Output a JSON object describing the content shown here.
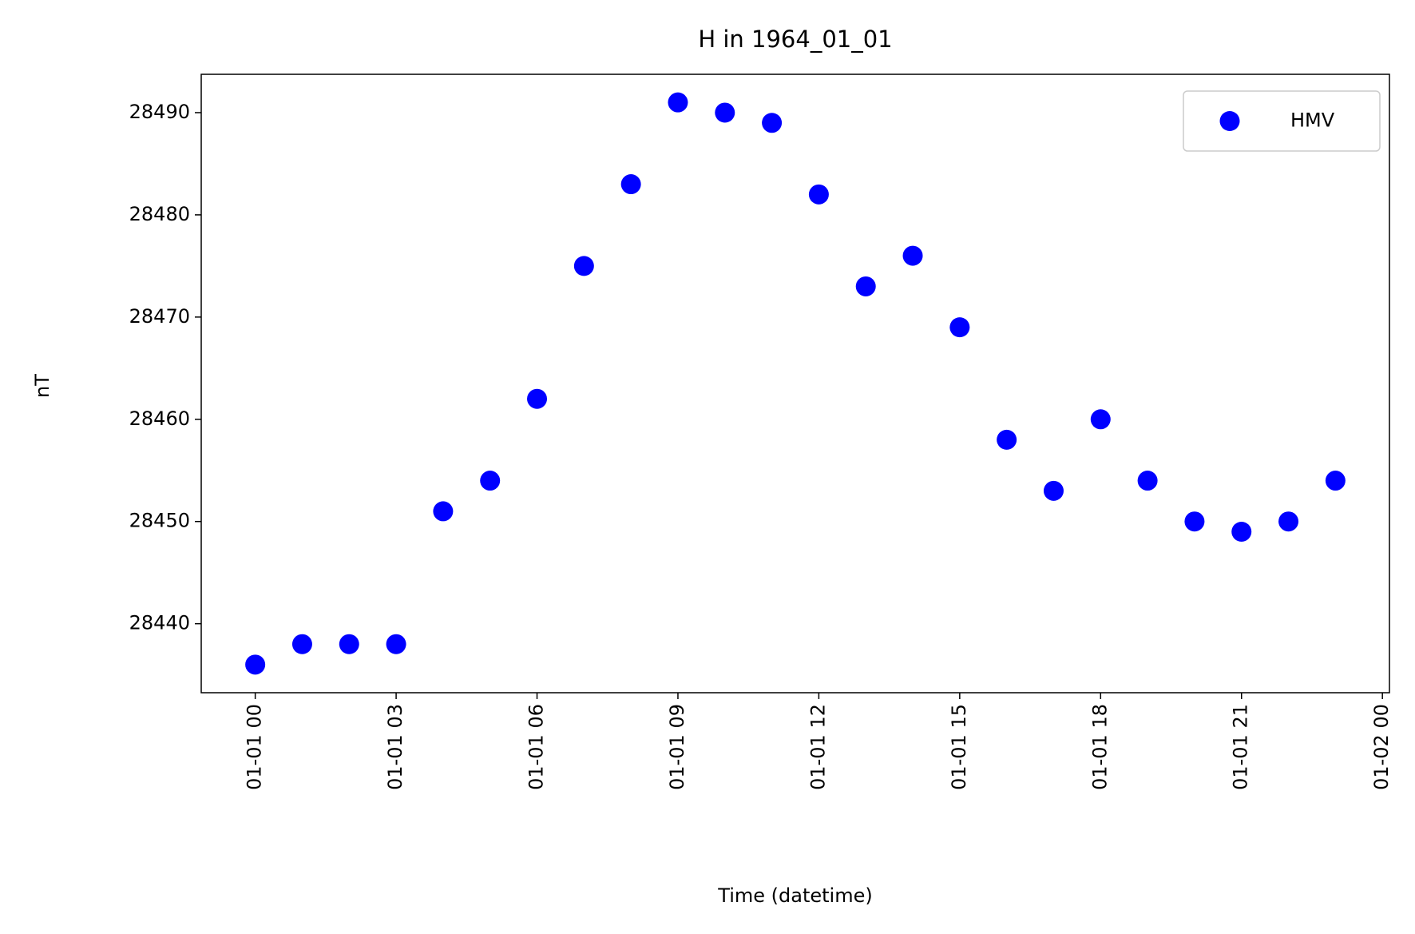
{
  "chart_data": {
    "type": "scatter",
    "title": "H in 1964_01_01",
    "xlabel": "Time (datetime)",
    "ylabel": "nT",
    "x": [
      0,
      1,
      2,
      3,
      4,
      5,
      6,
      7,
      8,
      9,
      10,
      11,
      12,
      13,
      14,
      15,
      16,
      17,
      18,
      19,
      20,
      21,
      22,
      23
    ],
    "series": [
      {
        "name": "HMV",
        "color": "#0000ff",
        "values": [
          28436,
          28438,
          28438,
          28438,
          28451,
          28454,
          28462,
          28475,
          28483,
          28491,
          28490,
          28489,
          28482,
          28473,
          28476,
          28469,
          28458,
          28453,
          28460,
          28454,
          28450,
          28449,
          28450,
          28454
        ]
      }
    ],
    "xlim": [
      -1.15,
      24.15
    ],
    "xticks": [
      {
        "value": 0,
        "label": "01-01 00"
      },
      {
        "value": 3,
        "label": "01-01 03"
      },
      {
        "value": 6,
        "label": "01-01 06"
      },
      {
        "value": 9,
        "label": "01-01 09"
      },
      {
        "value": 12,
        "label": "01-01 12"
      },
      {
        "value": 15,
        "label": "01-01 15"
      },
      {
        "value": 18,
        "label": "01-01 18"
      },
      {
        "value": 21,
        "label": "01-01 21"
      },
      {
        "value": 24,
        "label": "01-02 00"
      }
    ],
    "ylim": [
      28433.25,
      28493.75
    ],
    "yticks": [
      28440,
      28450,
      28460,
      28470,
      28480,
      28490
    ],
    "grid": false,
    "legend": "upper right"
  }
}
